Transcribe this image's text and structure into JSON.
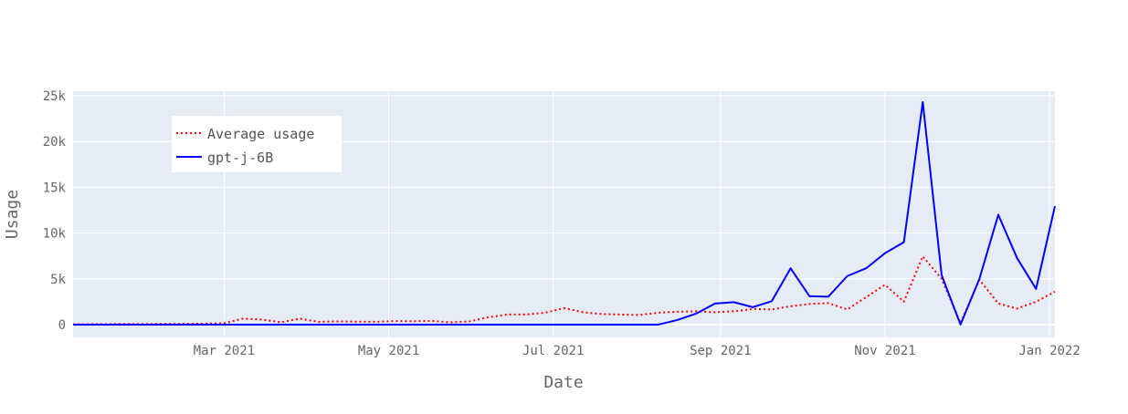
{
  "chart_data": {
    "type": "line",
    "xlabel": "Date",
    "ylabel": "Usage",
    "x_range": [
      "2021-01-04",
      "2022-01-03"
    ],
    "ylim": [
      -1400,
      25500
    ],
    "x_ticks": [
      {
        "date": "2021-03-01",
        "label": "Mar 2021"
      },
      {
        "date": "2021-05-01",
        "label": "May 2021"
      },
      {
        "date": "2021-07-01",
        "label": "Jul 2021"
      },
      {
        "date": "2021-09-01",
        "label": "Sep 2021"
      },
      {
        "date": "2021-11-01",
        "label": "Nov 2021"
      },
      {
        "date": "2022-01-01",
        "label": "Jan 2022"
      }
    ],
    "y_ticks": [
      {
        "value": 0,
        "label": "0"
      },
      {
        "value": 5000,
        "label": "5k"
      },
      {
        "value": 10000,
        "label": "10k"
      },
      {
        "value": 15000,
        "label": "15k"
      },
      {
        "value": 20000,
        "label": "20k"
      },
      {
        "value": 25000,
        "label": "25k"
      }
    ],
    "grid": true,
    "legend_position": "top-left",
    "x": [
      "2021-01-04",
      "2021-01-11",
      "2021-01-18",
      "2021-01-25",
      "2021-02-01",
      "2021-02-08",
      "2021-02-15",
      "2021-02-22",
      "2021-03-01",
      "2021-03-08",
      "2021-03-15",
      "2021-03-22",
      "2021-03-29",
      "2021-04-05",
      "2021-04-12",
      "2021-04-19",
      "2021-04-26",
      "2021-05-03",
      "2021-05-10",
      "2021-05-17",
      "2021-05-24",
      "2021-05-31",
      "2021-06-07",
      "2021-06-14",
      "2021-06-21",
      "2021-06-28",
      "2021-07-05",
      "2021-07-12",
      "2021-07-19",
      "2021-07-26",
      "2021-08-02",
      "2021-08-09",
      "2021-08-16",
      "2021-08-23",
      "2021-08-30",
      "2021-09-06",
      "2021-09-13",
      "2021-09-20",
      "2021-09-27",
      "2021-10-04",
      "2021-10-11",
      "2021-10-18",
      "2021-10-25",
      "2021-11-01",
      "2021-11-08",
      "2021-11-15",
      "2021-11-22",
      "2021-11-29",
      "2021-12-06",
      "2021-12-13",
      "2021-12-20",
      "2021-12-27",
      "2022-01-03"
    ],
    "series": [
      {
        "name": "Average usage",
        "color": "#ff0000",
        "style": "dotted",
        "values": [
          30,
          40,
          50,
          60,
          60,
          70,
          80,
          100,
          150,
          650,
          550,
          250,
          650,
          300,
          350,
          320,
          300,
          380,
          370,
          400,
          250,
          350,
          800,
          1100,
          1100,
          1300,
          1800,
          1350,
          1150,
          1100,
          1050,
          1300,
          1400,
          1450,
          1350,
          1450,
          1700,
          1650,
          2000,
          2250,
          2350,
          1650,
          3000,
          4350,
          2500,
          7450,
          5000,
          150,
          4900,
          2300,
          1750,
          2500,
          3600
        ]
      },
      {
        "name": "gpt-j-6B",
        "color": "#0000ff",
        "style": "solid",
        "values": [
          0,
          0,
          0,
          0,
          0,
          0,
          0,
          0,
          0,
          0,
          0,
          0,
          0,
          0,
          0,
          0,
          0,
          0,
          0,
          0,
          0,
          0,
          0,
          0,
          0,
          0,
          0,
          0,
          0,
          0,
          0,
          0,
          500,
          1200,
          2300,
          2450,
          1900,
          2550,
          6150,
          3100,
          3050,
          5300,
          6150,
          7800,
          9000,
          24300,
          5400,
          0,
          5000,
          12000,
          7250,
          3900,
          12950
        ]
      }
    ]
  }
}
